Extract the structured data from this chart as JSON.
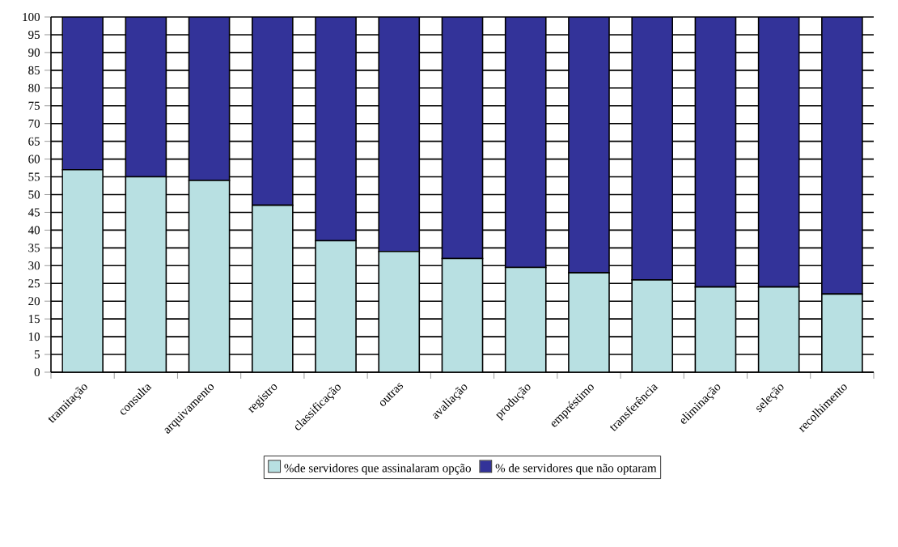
{
  "chart_data": {
    "type": "bar",
    "stacked": true,
    "categories": [
      "tramitação",
      "consulta",
      "arquivamento",
      "registro",
      "classificação",
      "outras",
      "avaliação",
      "produção",
      "empréstimo",
      "transferência",
      "eliminação",
      "seleção",
      "recolhimento"
    ],
    "series": [
      {
        "name": "%de servidores que assinalaram opção",
        "color": "#b8e0e2",
        "values": [
          57,
          55,
          54,
          47,
          37,
          34,
          32,
          29.5,
          28,
          26,
          24,
          24,
          22
        ]
      },
      {
        "name": "% de servidores que não optaram",
        "color": "#333399",
        "values": [
          43,
          45,
          46,
          53,
          63,
          66,
          68,
          70.5,
          72,
          74,
          76,
          76,
          78
        ]
      }
    ],
    "ylim": [
      0,
      100
    ],
    "yticks": [
      0,
      5,
      10,
      15,
      20,
      25,
      30,
      35,
      40,
      45,
      50,
      55,
      60,
      65,
      70,
      75,
      80,
      85,
      90,
      95,
      100
    ],
    "grid": "y",
    "legend": "bottom"
  }
}
